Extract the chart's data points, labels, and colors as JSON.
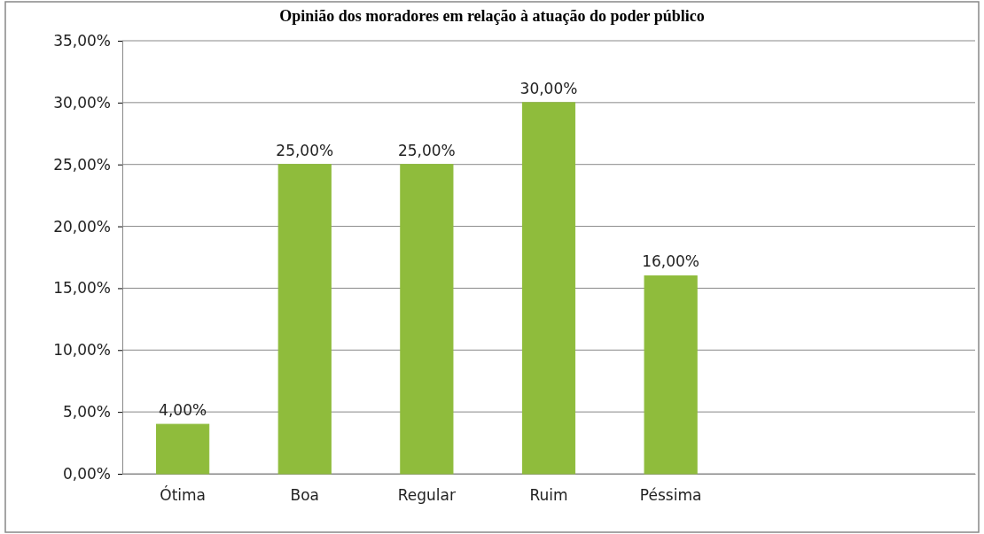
{
  "chart_data": {
    "type": "bar",
    "title": "Opinião dos moradores em relação à atuação do poder público",
    "categories": [
      "Ótima",
      "Boa",
      "Regular",
      "Ruim",
      "Péssima",
      null,
      null
    ],
    "values": [
      4,
      25,
      25,
      30,
      16,
      null,
      null
    ],
    "value_labels": [
      "4,00%",
      "25,00%",
      "25,00%",
      "30,00%",
      "16,00%",
      null,
      null
    ],
    "color": "#8fbc3c",
    "ylim": [
      0,
      35
    ],
    "yticks": [
      {
        "value": 0,
        "label": "0,00%"
      },
      {
        "value": 5,
        "label": "5,00%"
      },
      {
        "value": 10,
        "label": "10,00%"
      },
      {
        "value": 15,
        "label": "15,00%"
      },
      {
        "value": 20,
        "label": "20,00%"
      },
      {
        "value": 25,
        "label": "25,00%"
      },
      {
        "value": 30,
        "label": "30,00%"
      },
      {
        "value": 35,
        "label": "35,00%"
      }
    ],
    "grid": "y"
  }
}
